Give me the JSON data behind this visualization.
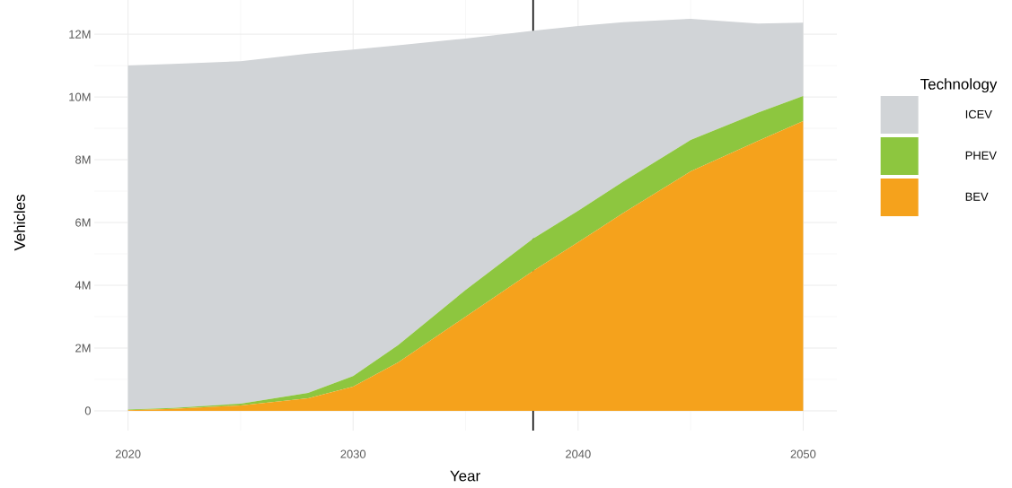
{
  "chart_data": {
    "type": "area",
    "stacked": true,
    "x": [
      2020,
      2022,
      2025,
      2028,
      2030,
      2032,
      2035,
      2038,
      2040,
      2042,
      2045,
      2048,
      2050
    ],
    "series": [
      {
        "name": "BEV",
        "color": "#f5a21c",
        "values": [
          0.02,
          0.06,
          0.17,
          0.4,
          0.77,
          1.54,
          3.0,
          4.46,
          5.37,
          6.3,
          7.63,
          8.6,
          9.23
        ]
      },
      {
        "name": "PHEV",
        "color": "#8dc63f",
        "values": [
          0.02,
          0.03,
          0.06,
          0.17,
          0.34,
          0.55,
          0.85,
          1.03,
          1.0,
          1.0,
          1.0,
          0.9,
          0.8
        ]
      },
      {
        "name": "ICEV",
        "color": "#d1d4d7",
        "values": [
          10.96,
          10.96,
          10.91,
          10.81,
          10.4,
          9.56,
          8.01,
          6.62,
          5.89,
          5.08,
          3.86,
          2.84,
          2.34
        ]
      }
    ],
    "xlabel": "Year",
    "ylabel": "Vehicles",
    "legend_title": "Technology",
    "legend": "right",
    "grid": true,
    "xlim": [
      2018.5,
      2051.5
    ],
    "xticks": [
      2020,
      2030,
      2040,
      2050
    ],
    "ylim": [
      -0.63,
      13.09
    ],
    "yticks": [
      {
        "value": 0,
        "label": "0"
      },
      {
        "value": 2,
        "label": "2M"
      },
      {
        "value": 4,
        "label": "4M"
      },
      {
        "value": 6,
        "label": "6M"
      },
      {
        "value": 8,
        "label": "8M"
      },
      {
        "value": 10,
        "label": "10M"
      },
      {
        "value": 12,
        "label": "12M"
      }
    ],
    "ref_lines": [
      {
        "axis": "x",
        "value": 2038,
        "color": "#000000"
      }
    ]
  }
}
